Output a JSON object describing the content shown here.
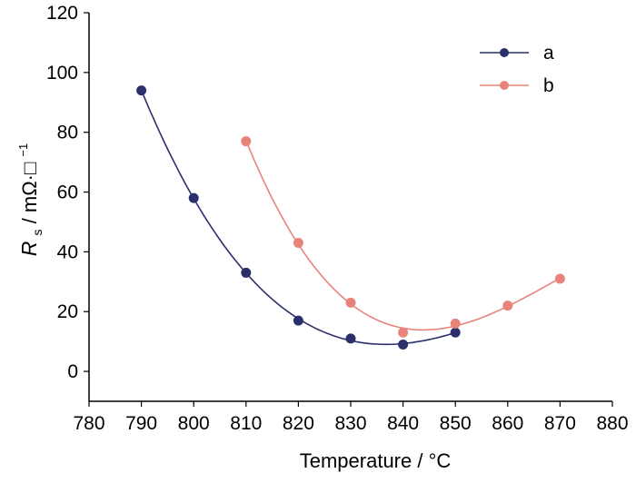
{
  "chart_data": {
    "type": "scatter",
    "xlabel": "Temperature / °C",
    "ylabel_symbol": "R",
    "ylabel_subscript": "s",
    "ylabel_unit": " / mΩ·□",
    "ylabel_exponent": "−1",
    "xlim": [
      780,
      880
    ],
    "ylim": [
      -10,
      120
    ],
    "xticks": [
      780,
      790,
      800,
      810,
      820,
      830,
      840,
      850,
      860,
      870,
      880
    ],
    "yticks": [
      0,
      20,
      40,
      60,
      80,
      100,
      120
    ],
    "grid": false,
    "legend_position": "top-right",
    "series": [
      {
        "name": "a",
        "color": "#2b2f6b",
        "x": [
          790,
          800,
          810,
          820,
          830,
          840,
          850
        ],
        "y": [
          94,
          58,
          33,
          17,
          11,
          9,
          13
        ]
      },
      {
        "name": "b",
        "color": "#e8837a",
        "x": [
          810,
          820,
          830,
          840,
          850,
          860,
          870
        ],
        "y": [
          77,
          43,
          23,
          13,
          16,
          22,
          31
        ]
      }
    ]
  }
}
